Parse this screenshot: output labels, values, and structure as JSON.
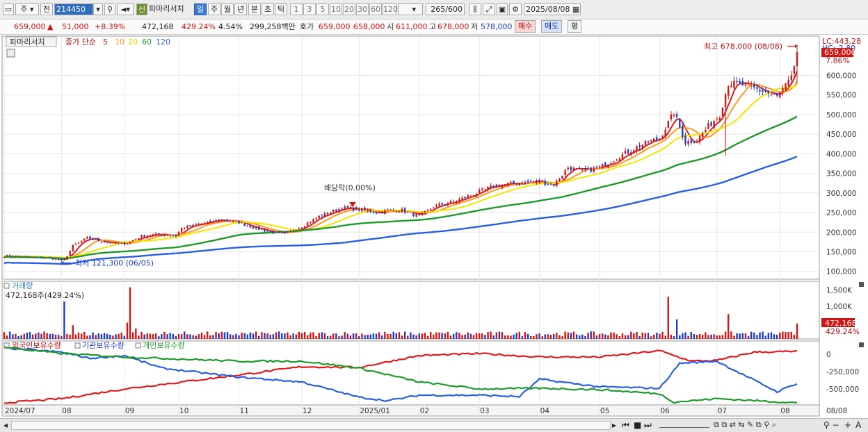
{
  "toolbar": {
    "market": "주",
    "prev": "전",
    "code": "214450",
    "sin": "신",
    "name": "파마리서치",
    "periods": [
      "일",
      "주",
      "월",
      "년",
      "분",
      "초",
      "틱"
    ],
    "active_period": "일",
    "intervals": [
      "1",
      "3",
      "5",
      "10",
      "20",
      "30",
      "60",
      "120"
    ],
    "count": "265",
    "count_max": "/600",
    "date": "2025/08/08"
  },
  "quote": {
    "price": "659,000",
    "arrow": "▲",
    "change": "51,000",
    "change_pct": "+8.39%",
    "volume": "472,168",
    "volume_pct": "429.24%",
    "turnover_pct": "4.54%",
    "amount": "299,258백만",
    "bid_label": "호가",
    "ask": "659,000",
    "bid": "658,000",
    "open_label": "시",
    "open": "611,000",
    "high_label": "고",
    "high": "678,000",
    "low_label": "저",
    "low": "578,000",
    "buy_button": "매수",
    "sell_button": "매도",
    "eval_button": "평"
  },
  "legend": {
    "name": "파마리서치",
    "ma_title": "종가 단순",
    "ma_periods": [
      "5",
      "10",
      "20",
      "60",
      "120"
    ],
    "ma_colors": [
      "#e01b1b",
      "#ff9a1f",
      "#f2e600",
      "#1f9a2a",
      "#2a5ee0"
    ]
  },
  "annotations": {
    "lc": "LC:443,28",
    "hc": "HC:-2,80",
    "last_price": "659,000",
    "last_pct": "7.86%",
    "high_note": "최고 678,000 (08/08)",
    "low_note": "최저 121,300 (06/05)",
    "dividend_note": "배당락(0.00%)"
  },
  "volume_panel": {
    "title": "거래량",
    "readout": "472,168주(429.24%)",
    "last_value": "472,168",
    "last_pct": "429.24%"
  },
  "holdings_panel": {
    "titles": [
      "외국인보유수량",
      "기관보유수량",
      "개인보유수량"
    ]
  },
  "bottom": {
    "date": "08/08"
  },
  "chart_data": [
    {
      "type": "candlestick",
      "title": "",
      "ylim": [
        80000,
        700000
      ],
      "y_ticks": [
        100000,
        150000,
        200000,
        250000,
        300000,
        350000,
        400000,
        450000,
        500000,
        550000,
        600000
      ],
      "y_tick_labels": [
        "100,000",
        "150,000",
        "200,000",
        "250,000",
        "300,000",
        "350,000",
        "400,000",
        "450,000",
        "500,000",
        "550,000",
        "600,000"
      ],
      "x_ticks": [
        "2024/07",
        "08",
        "09",
        "10",
        "11",
        "12",
        "2025/01",
        "02",
        "03",
        "04",
        "05",
        "06",
        "07",
        "08"
      ],
      "x_tick_idx": [
        0,
        20,
        42,
        61,
        82,
        104,
        124,
        145,
        166,
        187,
        208,
        229,
        249,
        271
      ],
      "n": 278,
      "close_anchors": [
        [
          0,
          140000
        ],
        [
          15,
          134000
        ],
        [
          21,
          128000
        ],
        [
          24,
          165000
        ],
        [
          29,
          185000
        ],
        [
          35,
          175000
        ],
        [
          40,
          170000
        ],
        [
          43,
          172000
        ],
        [
          48,
          190000
        ],
        [
          55,
          195000
        ],
        [
          60,
          190000
        ],
        [
          62,
          210000
        ],
        [
          68,
          220000
        ],
        [
          76,
          232000
        ],
        [
          82,
          225000
        ],
        [
          87,
          212000
        ],
        [
          93,
          200000
        ],
        [
          98,
          195000
        ],
        [
          104,
          215000
        ],
        [
          110,
          240000
        ],
        [
          118,
          262000
        ],
        [
          124,
          258000
        ],
        [
          130,
          250000
        ],
        [
          138,
          258000
        ],
        [
          145,
          240000
        ],
        [
          150,
          265000
        ],
        [
          158,
          280000
        ],
        [
          165,
          300000
        ],
        [
          172,
          320000
        ],
        [
          180,
          325000
        ],
        [
          187,
          330000
        ],
        [
          192,
          320000
        ],
        [
          197,
          365000
        ],
        [
          202,
          355000
        ],
        [
          208,
          365000
        ],
        [
          214,
          390000
        ],
        [
          222,
          420000
        ],
        [
          229,
          440000
        ],
        [
          234,
          505000
        ],
        [
          238,
          430000
        ],
        [
          242,
          435000
        ],
        [
          246,
          470000
        ],
        [
          250,
          500000
        ],
        [
          253,
          580000
        ],
        [
          258,
          575000
        ],
        [
          265,
          560000
        ],
        [
          270,
          545000
        ],
        [
          275,
          590000
        ],
        [
          277,
          659000
        ]
      ],
      "series": [
        {
          "name": "5",
          "color": "#e01b1b"
        },
        {
          "name": "10",
          "color": "#ff9a1f"
        },
        {
          "name": "20",
          "color": "#f2e600"
        },
        {
          "name": "60",
          "color": "#1f9a2a"
        },
        {
          "name": "120",
          "color": "#2a5ee0"
        }
      ],
      "high": 678000,
      "high_date": "08/08",
      "low": 121300,
      "low_date": "06/05"
    },
    {
      "type": "bar",
      "title": "거래량",
      "ylim": [
        0,
        1700000
      ],
      "y_ticks": [
        1000000,
        1500000
      ],
      "y_tick_labels": [
        "1,000K",
        "1,500K"
      ],
      "spikes": [
        [
          21,
          1150000
        ],
        [
          24,
          420000
        ],
        [
          43,
          500000
        ],
        [
          44,
          1580000
        ],
        [
          46,
          320000
        ],
        [
          232,
          1290000
        ],
        [
          235,
          600000
        ],
        [
          253,
          760000
        ],
        [
          277,
          472168
        ]
      ]
    },
    {
      "type": "line",
      "title": "보유수량",
      "ylim": [
        -720000,
        160000
      ],
      "y_ticks": [
        0,
        -250000,
        -500000
      ],
      "y_tick_labels": [
        "0",
        "-250,000",
        "-500,000"
      ],
      "series": [
        {
          "name": "외국인보유수량",
          "color": "#e01b1b",
          "anchors": [
            [
              0,
              -700000
            ],
            [
              20,
              -640000
            ],
            [
              42,
              -500000
            ],
            [
              82,
              -300000
            ],
            [
              104,
              -180000
            ],
            [
              124,
              -190000
            ],
            [
              145,
              -20000
            ],
            [
              166,
              10000
            ],
            [
              187,
              -40000
            ],
            [
              208,
              -40000
            ],
            [
              229,
              50000
            ],
            [
              240,
              -100000
            ],
            [
              249,
              -90000
            ],
            [
              262,
              30000
            ],
            [
              277,
              40000
            ]
          ]
        },
        {
          "name": "기관보유수량",
          "color": "#2a5ee0",
          "anchors": [
            [
              0,
              90000
            ],
            [
              20,
              30000
            ],
            [
              30,
              -60000
            ],
            [
              42,
              -20000
            ],
            [
              55,
              -200000
            ],
            [
              82,
              -330000
            ],
            [
              104,
              -400000
            ],
            [
              124,
              -620000
            ],
            [
              134,
              -670000
            ],
            [
              145,
              -590000
            ],
            [
              166,
              -590000
            ],
            [
              180,
              -610000
            ],
            [
              187,
              -360000
            ],
            [
              208,
              -470000
            ],
            [
              229,
              -490000
            ],
            [
              236,
              -130000
            ],
            [
              249,
              -100000
            ],
            [
              256,
              -250000
            ],
            [
              270,
              -540000
            ],
            [
              277,
              -420000
            ]
          ]
        },
        {
          "name": "개인보유수량",
          "color": "#1f9a2a",
          "anchors": [
            [
              0,
              100000
            ],
            [
              20,
              10000
            ],
            [
              42,
              -40000
            ],
            [
              82,
              -100000
            ],
            [
              104,
              -100000
            ],
            [
              124,
              -200000
            ],
            [
              145,
              -400000
            ],
            [
              166,
              -500000
            ],
            [
              187,
              -490000
            ],
            [
              208,
              -510000
            ],
            [
              229,
              -570000
            ],
            [
              234,
              -690000
            ],
            [
              249,
              -640000
            ],
            [
              277,
              -700000
            ]
          ]
        }
      ]
    }
  ]
}
